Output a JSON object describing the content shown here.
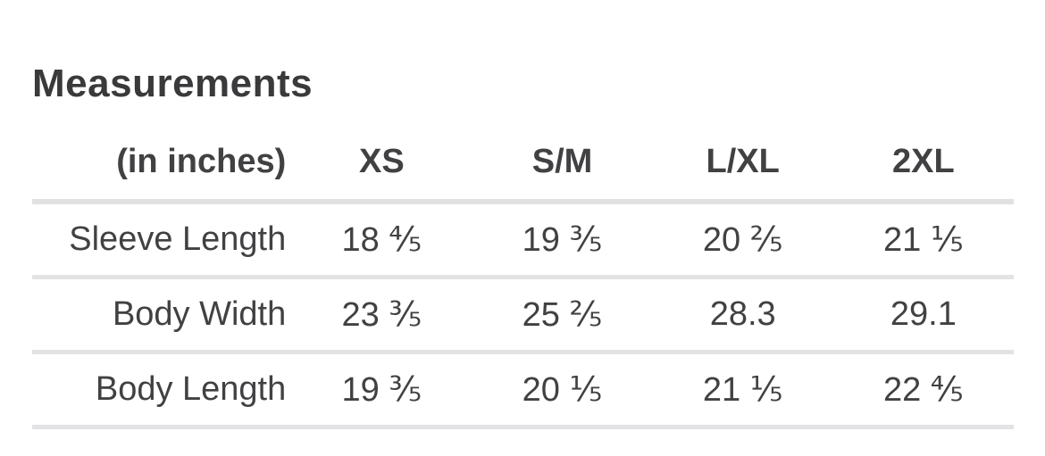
{
  "page": {
    "title": "Measurements"
  },
  "table": {
    "unit_label": "(in inches)",
    "columns": [
      "XS",
      "S/M",
      "L/XL",
      "2XL"
    ],
    "rows": [
      {
        "label": "Sleeve Length",
        "values": [
          "18 ⅘",
          "19 ⅗",
          "20 ⅖",
          "21 ⅕"
        ]
      },
      {
        "label": "Body Width",
        "values": [
          "23 ⅗",
          "25 ⅖",
          "28.3",
          "29.1"
        ]
      },
      {
        "label": "Body Length",
        "values": [
          "19 ⅗",
          "20 ⅕",
          "21 ⅕",
          "22 ⅘"
        ]
      }
    ],
    "colors": {
      "background": "#ffffff",
      "text": "#414144",
      "title_text": "#3a3a3c",
      "divider": "#e1e1e4"
    }
  }
}
